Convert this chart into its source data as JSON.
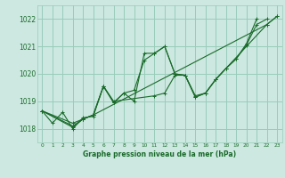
{
  "bg_color": "#cce8e0",
  "grid_color": "#99ccbb",
  "line_color": "#1a6b2a",
  "xlabel": "Graphe pression niveau de la mer (hPa)",
  "ylim": [
    1017.5,
    1022.5
  ],
  "xlim": [
    -0.5,
    23.5
  ],
  "yticks": [
    1018,
    1019,
    1020,
    1021,
    1022
  ],
  "xticks": [
    0,
    1,
    2,
    3,
    4,
    5,
    6,
    7,
    8,
    9,
    10,
    11,
    12,
    13,
    14,
    15,
    16,
    17,
    18,
    19,
    20,
    21,
    22,
    23
  ],
  "series": [
    {
      "x": [
        0,
        1,
        2,
        3,
        4,
        5,
        6,
        7,
        8,
        9,
        10,
        11,
        12,
        13,
        14,
        15,
        16,
        17,
        18,
        19,
        20,
        21
      ],
      "y": [
        1018.65,
        1018.2,
        1018.6,
        1018.0,
        1018.4,
        1018.45,
        1019.55,
        1018.95,
        1019.3,
        1019.0,
        1020.75,
        1020.75,
        1021.0,
        1020.0,
        1019.95,
        1019.2,
        1019.3,
        1019.8,
        1020.2,
        1020.55,
        1021.1,
        1022.0
      ]
    },
    {
      "x": [
        0,
        3,
        4,
        5,
        6,
        7,
        8,
        9,
        10,
        11,
        12,
        13,
        14,
        15,
        16,
        17,
        18,
        19,
        20,
        21,
        22
      ],
      "y": [
        1018.65,
        1018.05,
        1018.35,
        1018.5,
        1019.55,
        1018.95,
        1019.3,
        1019.4,
        1020.5,
        1020.75,
        1021.0,
        1020.0,
        1019.95,
        1019.15,
        1019.3,
        1019.8,
        1020.2,
        1020.55,
        1021.05,
        1021.8,
        1022.0
      ]
    },
    {
      "x": [
        0,
        3,
        4,
        5,
        6,
        7,
        11,
        12,
        13,
        14,
        15,
        16,
        17,
        18,
        22,
        23
      ],
      "y": [
        1018.65,
        1018.1,
        1018.35,
        1018.5,
        1019.55,
        1019.0,
        1019.2,
        1019.3,
        1019.95,
        1019.95,
        1019.15,
        1019.3,
        1019.8,
        1020.2,
        1021.8,
        1022.1
      ]
    },
    {
      "x": [
        0,
        3,
        4,
        5,
        22,
        23
      ],
      "y": [
        1018.65,
        1018.2,
        1018.35,
        1018.5,
        1021.8,
        1022.1
      ]
    }
  ]
}
